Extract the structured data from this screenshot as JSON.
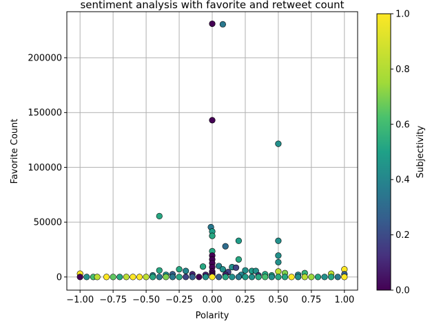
{
  "chart_data": {
    "type": "scatter",
    "title": "sentiment analysis with favorite and retweet count",
    "xlabel": "Polarity",
    "ylabel": "Favorite Count",
    "colorbar_label": "Subjectivity",
    "colormap": "viridis",
    "xlim": [
      -1.1,
      1.1
    ],
    "ylim": [
      -12000,
      242000
    ],
    "xticks": [
      -1.0,
      -0.75,
      -0.5,
      -0.25,
      0.0,
      0.25,
      0.5,
      0.75,
      1.0
    ],
    "xtick_labels": [
      "−1.00",
      "−0.75",
      "−0.50",
      "−0.25",
      "0.00",
      "0.25",
      "0.50",
      "0.75",
      "1.00"
    ],
    "yticks": [
      0,
      50000,
      100000,
      150000,
      200000
    ],
    "ytick_labels": [
      "0",
      "50000",
      "100000",
      "150000",
      "200000"
    ],
    "colorbar_ticks": [
      0.0,
      0.2,
      0.4,
      0.6,
      0.8,
      1.0
    ],
    "colorbar_tick_labels": [
      "0.0",
      "0.2",
      "0.4",
      "0.6",
      "0.8",
      "1.0"
    ],
    "grid": true,
    "points": [
      {
        "x": 0.0,
        "y": 231000,
        "s": 0.0
      },
      {
        "x": 0.08,
        "y": 230500,
        "s": 0.4
      },
      {
        "x": 0.0,
        "y": 143000,
        "s": 0.0
      },
      {
        "x": 0.5,
        "y": 121500,
        "s": 0.5
      },
      {
        "x": -0.4,
        "y": 55500,
        "s": 0.6
      },
      {
        "x": -0.01,
        "y": 45500,
        "s": 0.4
      },
      {
        "x": 0.0,
        "y": 41500,
        "s": 0.55
      },
      {
        "x": 0.0,
        "y": 37500,
        "s": 0.6
      },
      {
        "x": 0.2,
        "y": 33000,
        "s": 0.55
      },
      {
        "x": 0.5,
        "y": 33000,
        "s": 0.5
      },
      {
        "x": 0.1,
        "y": 28000,
        "s": 0.35
      },
      {
        "x": 0.0,
        "y": 23500,
        "s": 0.6
      },
      {
        "x": 0.0,
        "y": 19500,
        "s": 0.0
      },
      {
        "x": 0.5,
        "y": 19500,
        "s": 0.5
      },
      {
        "x": 0.0,
        "y": 16000,
        "s": 0.0
      },
      {
        "x": 0.2,
        "y": 16000,
        "s": 0.6
      },
      {
        "x": 0.5,
        "y": 13500,
        "s": 0.5
      },
      {
        "x": 0.0,
        "y": 12500,
        "s": 0.0
      },
      {
        "x": 0.05,
        "y": 10000,
        "s": 0.45
      },
      {
        "x": -0.07,
        "y": 9500,
        "s": 0.6
      },
      {
        "x": 0.0,
        "y": 9000,
        "s": 0.0
      },
      {
        "x": 0.15,
        "y": 9000,
        "s": 0.5
      },
      {
        "x": 0.18,
        "y": 8500,
        "s": 0.2
      },
      {
        "x": 0.08,
        "y": 7000,
        "s": 0.5
      },
      {
        "x": -0.25,
        "y": 7000,
        "s": 0.6
      },
      {
        "x": 1.0,
        "y": 7000,
        "s": 1.0
      },
      {
        "x": -0.4,
        "y": 6000,
        "s": 0.6
      },
      {
        "x": 0.25,
        "y": 6000,
        "s": 0.5
      },
      {
        "x": 0.3,
        "y": 5500,
        "s": 0.55
      },
      {
        "x": 0.33,
        "y": 5500,
        "s": 0.5
      },
      {
        "x": -0.2,
        "y": 5500,
        "s": 0.45
      },
      {
        "x": 0.5,
        "y": 5000,
        "s": 0.9
      },
      {
        "x": 0.0,
        "y": 5000,
        "s": 0.0
      },
      {
        "x": 0.12,
        "y": 4500,
        "s": 0.2
      },
      {
        "x": 0.55,
        "y": 3500,
        "s": 0.8
      },
      {
        "x": 0.7,
        "y": 3500,
        "s": 0.65
      },
      {
        "x": 0.9,
        "y": 3000,
        "s": 0.9
      },
      {
        "x": -1.0,
        "y": 3000,
        "s": 1.0
      },
      {
        "x": 0.0,
        "y": 3000,
        "s": 0.0
      },
      {
        "x": -0.3,
        "y": 2500,
        "s": 0.3
      },
      {
        "x": -0.15,
        "y": 2500,
        "s": 0.1
      },
      {
        "x": 0.4,
        "y": 2500,
        "s": 0.6
      },
      {
        "x": 1.0,
        "y": 2500,
        "s": 0.3
      },
      {
        "x": -0.35,
        "y": 2000,
        "s": 0.5
      },
      {
        "x": -0.05,
        "y": 2000,
        "s": 0.1
      },
      {
        "x": 0.1,
        "y": 2000,
        "s": 0.1
      },
      {
        "x": 0.22,
        "y": 2000,
        "s": 0.45
      },
      {
        "x": 0.65,
        "y": 2000,
        "s": 0.45
      },
      {
        "x": 0.0,
        "y": 1500,
        "s": 0.0
      },
      {
        "x": -0.45,
        "y": 1500,
        "s": 0.45
      },
      {
        "x": 0.35,
        "y": 1500,
        "s": 0.2
      },
      {
        "x": 0.45,
        "y": 1500,
        "s": 0.6
      },
      {
        "x": -1.0,
        "y": 0,
        "s": 0.0
      },
      {
        "x": -0.95,
        "y": 0,
        "s": 0.5
      },
      {
        "x": -0.9,
        "y": 0,
        "s": 0.7
      },
      {
        "x": -0.87,
        "y": 0,
        "s": 0.9
      },
      {
        "x": -0.8,
        "y": 0,
        "s": 1.0
      },
      {
        "x": -0.75,
        "y": 0,
        "s": 0.75
      },
      {
        "x": -0.7,
        "y": 0,
        "s": 0.6
      },
      {
        "x": -0.65,
        "y": 0,
        "s": 0.9
      },
      {
        "x": -0.6,
        "y": 0,
        "s": 1.0
      },
      {
        "x": -0.55,
        "y": 0,
        "s": 1.0
      },
      {
        "x": -0.5,
        "y": 0,
        "s": 0.9
      },
      {
        "x": -0.45,
        "y": 0,
        "s": 0.6
      },
      {
        "x": -0.4,
        "y": 0,
        "s": 0.4
      },
      {
        "x": -0.35,
        "y": 0,
        "s": 0.8
      },
      {
        "x": -0.3,
        "y": 0,
        "s": 0.4
      },
      {
        "x": -0.25,
        "y": 0,
        "s": 0.6
      },
      {
        "x": -0.2,
        "y": 0,
        "s": 0.2
      },
      {
        "x": -0.15,
        "y": 0,
        "s": 0.3
      },
      {
        "x": -0.1,
        "y": 0,
        "s": 0.0
      },
      {
        "x": -0.05,
        "y": 0,
        "s": 0.5
      },
      {
        "x": 0.0,
        "y": 0,
        "s": 1.0
      },
      {
        "x": 0.05,
        "y": 0,
        "s": 0.3
      },
      {
        "x": 0.1,
        "y": 0,
        "s": 0.6
      },
      {
        "x": 0.15,
        "y": 0,
        "s": 0.5
      },
      {
        "x": 0.2,
        "y": 0,
        "s": 0.4
      },
      {
        "x": 0.25,
        "y": 0,
        "s": 0.55
      },
      {
        "x": 0.3,
        "y": 0,
        "s": 0.5
      },
      {
        "x": 0.35,
        "y": 0,
        "s": 0.6
      },
      {
        "x": 0.4,
        "y": 0,
        "s": 0.7
      },
      {
        "x": 0.45,
        "y": 0,
        "s": 0.5
      },
      {
        "x": 0.5,
        "y": 0,
        "s": 0.6
      },
      {
        "x": 0.55,
        "y": 0,
        "s": 0.6
      },
      {
        "x": 0.6,
        "y": 0,
        "s": 1.0
      },
      {
        "x": 0.65,
        "y": 0,
        "s": 0.5
      },
      {
        "x": 0.7,
        "y": 0,
        "s": 0.9
      },
      {
        "x": 0.75,
        "y": 0,
        "s": 0.85
      },
      {
        "x": 0.8,
        "y": 0,
        "s": 0.6
      },
      {
        "x": 0.85,
        "y": 0,
        "s": 0.5
      },
      {
        "x": 0.9,
        "y": 0,
        "s": 0.6
      },
      {
        "x": 0.95,
        "y": 0,
        "s": 0.4
      },
      {
        "x": 1.0,
        "y": 0,
        "s": 1.0
      }
    ]
  }
}
